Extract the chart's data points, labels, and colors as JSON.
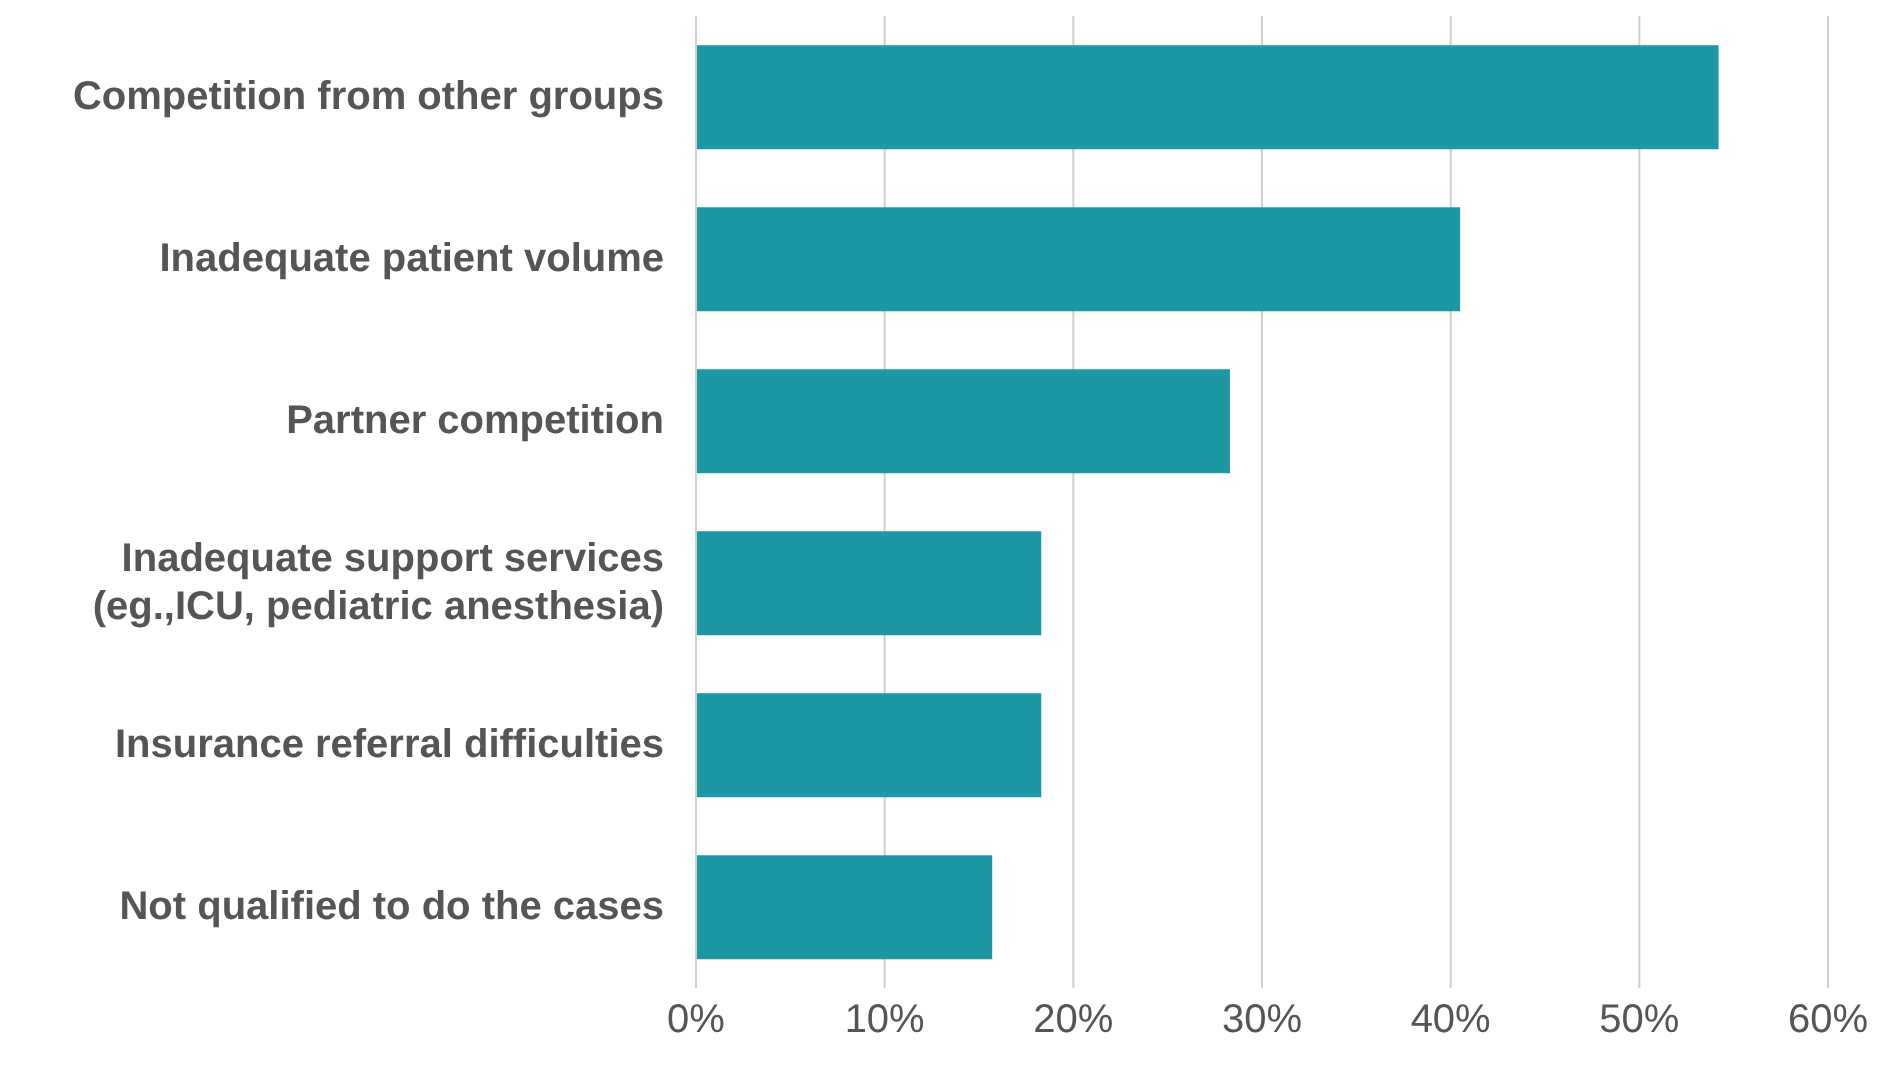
{
  "chart_data": {
    "type": "bar",
    "orientation": "horizontal",
    "categories": [
      "Competition from other groups",
      "Inadequate patient volume",
      "Partner competition",
      "Inadequate support services\n(eg.,ICU, pediatric anesthesia)",
      "Insurance referral difficulties",
      "Not qualified to do the cases"
    ],
    "values": [
      54.2,
      40.5,
      28.3,
      18.3,
      18.3,
      15.7
    ],
    "color": "#1d97a4",
    "xlim": [
      0,
      60
    ],
    "xticks": [
      {
        "value": 0,
        "label": "0%"
      },
      {
        "value": 10,
        "label": "10%"
      },
      {
        "value": 20,
        "label": "20%"
      },
      {
        "value": 30,
        "label": "30%"
      },
      {
        "value": 40,
        "label": "40%"
      },
      {
        "value": 50,
        "label": "50%"
      },
      {
        "value": 60,
        "label": "60%"
      }
    ],
    "grid": "x"
  }
}
